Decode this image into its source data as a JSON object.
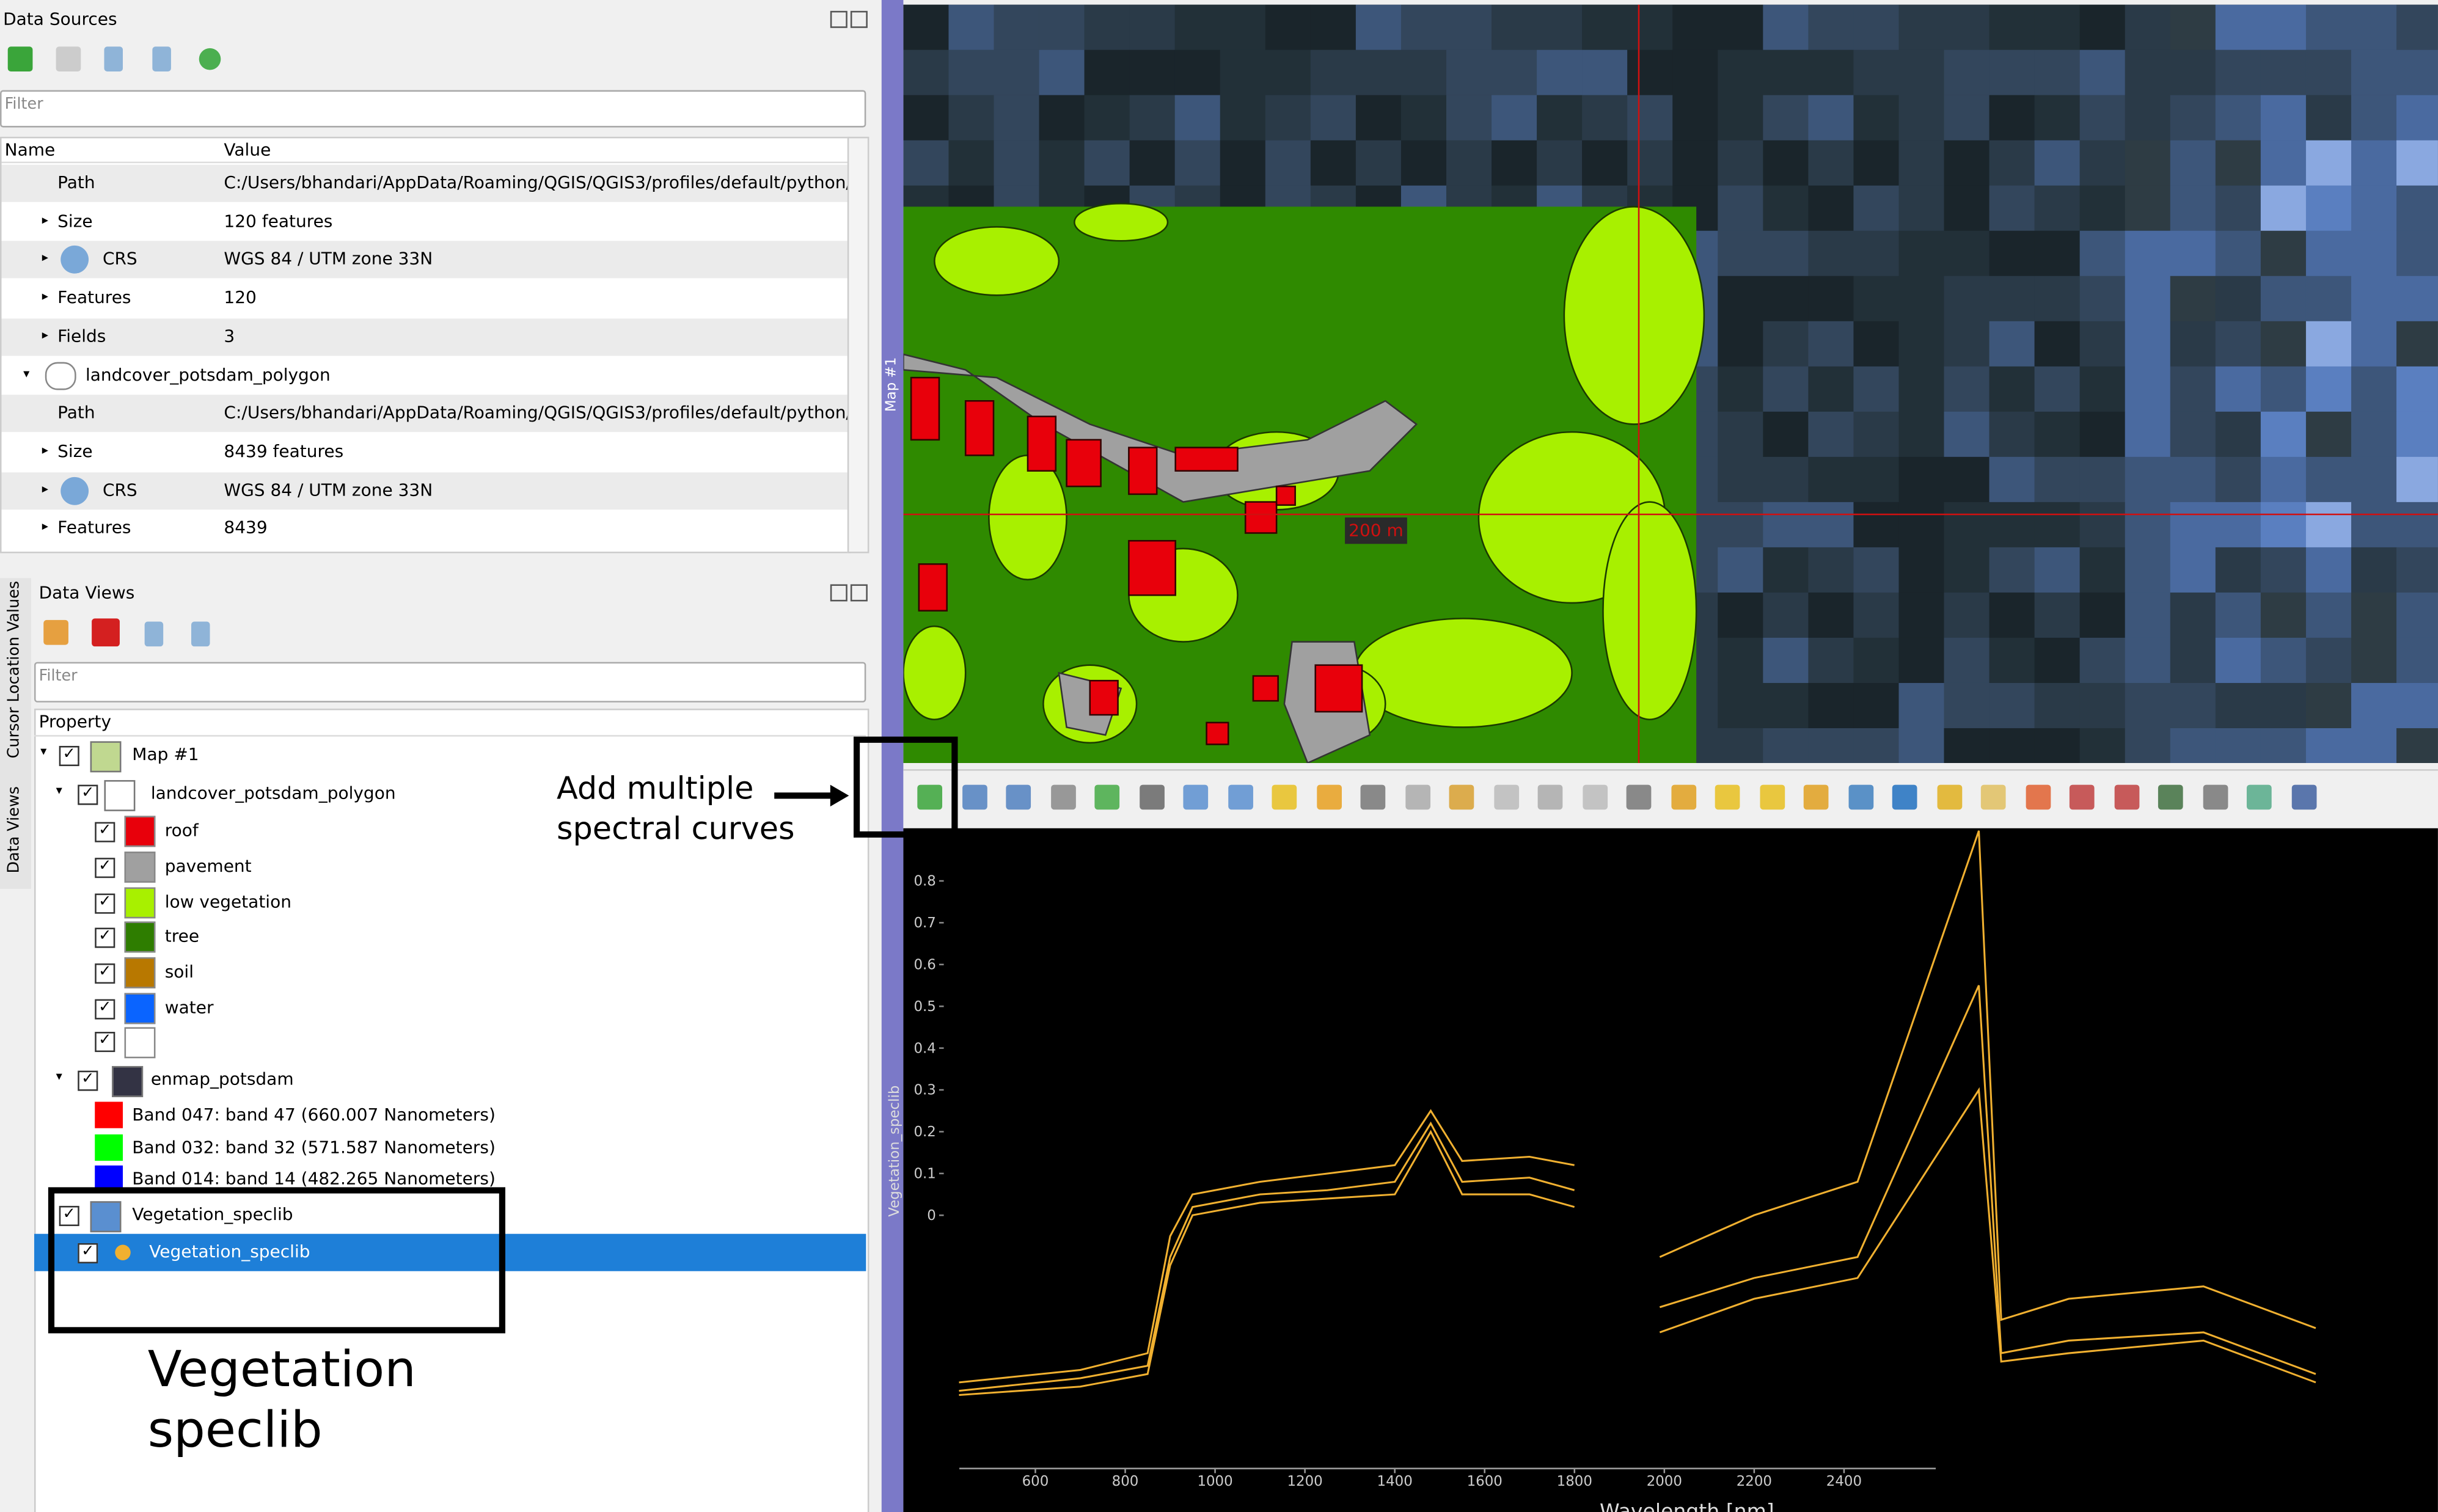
{
  "data_sources": {
    "title": "Data Sources",
    "filter": "Filter",
    "columns": [
      "Name",
      "Value"
    ],
    "rows": [
      [
        "Path",
        "C:/Users/bhandari/AppData/Roaming/QGIS/QGIS3/profiles/default/python/..."
      ],
      [
        "Size",
        "120 features"
      ],
      [
        "CRS",
        "WGS 84 / UTM zone 33N"
      ],
      [
        "Features",
        "120"
      ],
      [
        "Fields",
        "3"
      ],
      [
        "landcover_potsdam_polygon"
      ],
      [
        "Path",
        "C:/Users/bhandari/AppData/Roaming/QGIS/QGIS3/profiles/default/python/..."
      ],
      [
        "Size",
        "8439 features"
      ],
      [
        "CRS",
        "WGS 84 / UTM zone 33N"
      ],
      [
        "Features",
        "8439"
      ]
    ]
  },
  "data_views": {
    "title": "Data Views",
    "filter": "Filter",
    "header": "Property",
    "items": [
      "Map #1",
      "landcover_potsdam_polygon",
      "roof",
      "pavement",
      "low vegetation",
      "tree",
      "soil",
      "water",
      "enmap_potsdam",
      "Band 047: band 47 (660.007 Nanometers)",
      "Band 032: band 32 (571.587 Nanometers)",
      "Band 014: band 14 (482.265 Nanometers)",
      "Vegetation_speclib",
      "Vegetation_speclib"
    ]
  },
  "side_tabs": [
    "Cursor Location Values",
    "Data Views"
  ],
  "map": {
    "side_label": "Map #1",
    "scale_label": "200 m"
  },
  "annotations": {
    "add_curves": [
      "Add multiple",
      "spectral curves"
    ],
    "speclib": [
      "Vegetation",
      "speclib"
    ]
  },
  "spectral_plot": {
    "type": "line",
    "y_label": "Vegetation_speclib",
    "x_label": "Wavelength [nm]",
    "xlim": [
      320,
      3722
    ],
    "ylim": [
      -0.71,
      0.926
    ],
    "xticks": [
      600,
      800,
      1000,
      1200,
      1400,
      1600,
      1800,
      2000,
      2200,
      2400
    ],
    "yticks": [
      0,
      0.1,
      0.2,
      0.3,
      0.4,
      0.5,
      0.6,
      0.7,
      0.8
    ],
    "x": [
      430,
      700,
      850,
      900,
      950,
      1100,
      1250,
      1400,
      1480,
      1550,
      1700,
      1800,
      1900,
      1990,
      2200,
      2430,
      2700,
      2750,
      2900,
      3200,
      3450
    ],
    "series": [
      {
        "color": "#f0b030",
        "values": [
          -0.4,
          -0.37,
          -0.33,
          -0.05,
          0.05,
          0.08,
          0.1,
          0.12,
          0.25,
          0.13,
          0.14,
          0.12,
          null,
          -0.1,
          0.0,
          0.08,
          0.92,
          -0.25,
          -0.2,
          -0.17,
          -0.27
        ]
      },
      {
        "color": "#f0b030",
        "values": [
          -0.42,
          -0.39,
          -0.36,
          -0.1,
          0.02,
          0.05,
          0.06,
          0.08,
          0.22,
          0.08,
          0.09,
          0.06,
          null,
          -0.22,
          -0.15,
          -0.1,
          0.55,
          -0.33,
          -0.3,
          -0.28,
          -0.38
        ]
      },
      {
        "color": "#f0b030",
        "values": [
          -0.43,
          -0.41,
          -0.38,
          -0.12,
          0.0,
          0.03,
          0.04,
          0.05,
          0.2,
          0.05,
          0.05,
          0.02,
          null,
          -0.28,
          -0.2,
          -0.15,
          0.3,
          -0.35,
          -0.33,
          -0.3,
          -0.4
        ]
      }
    ]
  }
}
